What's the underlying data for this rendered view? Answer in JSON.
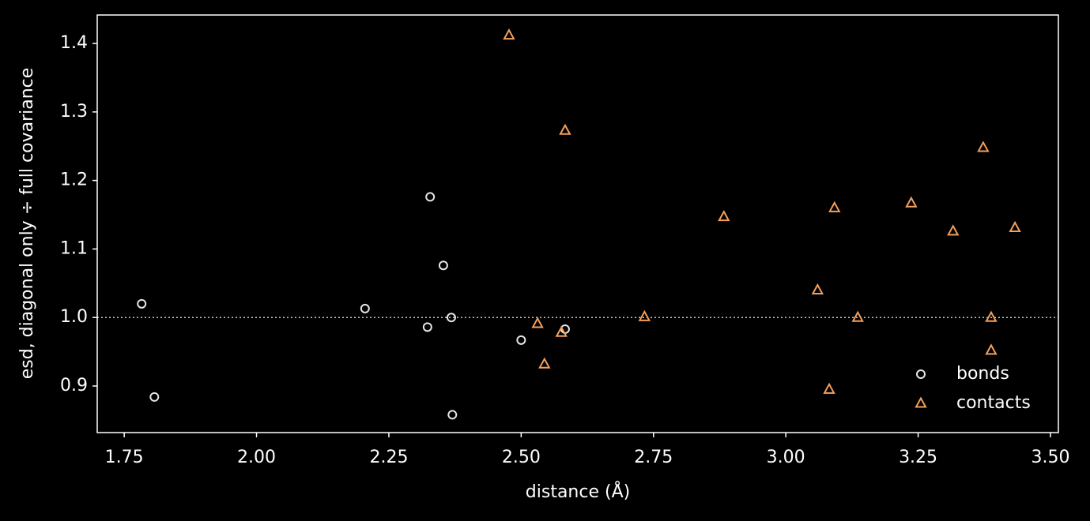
{
  "chart_data": {
    "type": "scatter",
    "xlabel": "distance (Å)",
    "ylabel": "esd, diagonal only ÷ full covariance",
    "xlim": [
      1.699,
      3.515
    ],
    "ylim": [
      0.832,
      1.4415
    ],
    "xticks": [
      1.75,
      {
        "value": 2,
        "label": "2.00"
      },
      2.25,
      {
        "value": 2.5,
        "label": "2.50"
      },
      2.75,
      {
        "value": 3,
        "label": "3.00"
      },
      3.25,
      {
        "value": 3.5,
        "label": "3.50"
      }
    ],
    "yticks": [
      0.9,
      {
        "value": 1,
        "label": "1.0"
      },
      1.1,
      1.2,
      1.3,
      1.4
    ],
    "hline": 1,
    "legend": "lower right",
    "series": [
      {
        "name": "bonds",
        "color": "#e6e6e6",
        "marker": "circle",
        "x": [
          1.783,
          1.807,
          2.205,
          2.323,
          2.328,
          2.353,
          2.368,
          2.37,
          2.5,
          2.583
        ],
        "values": [
          1.02,
          0.884,
          1.013,
          0.986,
          1.176,
          1.076,
          1.0,
          0.858,
          0.967,
          0.983
        ]
      },
      {
        "name": "contacts",
        "color": "#f5a05a",
        "marker": "triangle",
        "x": [
          2.477,
          2.531,
          2.544,
          2.576,
          2.583,
          2.733,
          2.883,
          3.06,
          3.082,
          3.092,
          3.136,
          3.237,
          3.316,
          3.373,
          3.388,
          3.388,
          3.433
        ],
        "values": [
          1.412,
          0.991,
          0.932,
          0.978,
          1.273,
          1.001,
          1.147,
          1.04,
          0.895,
          1.16,
          1.0,
          1.167,
          1.126,
          1.248,
          1.0,
          0.952,
          1.131
        ]
      }
    ]
  }
}
